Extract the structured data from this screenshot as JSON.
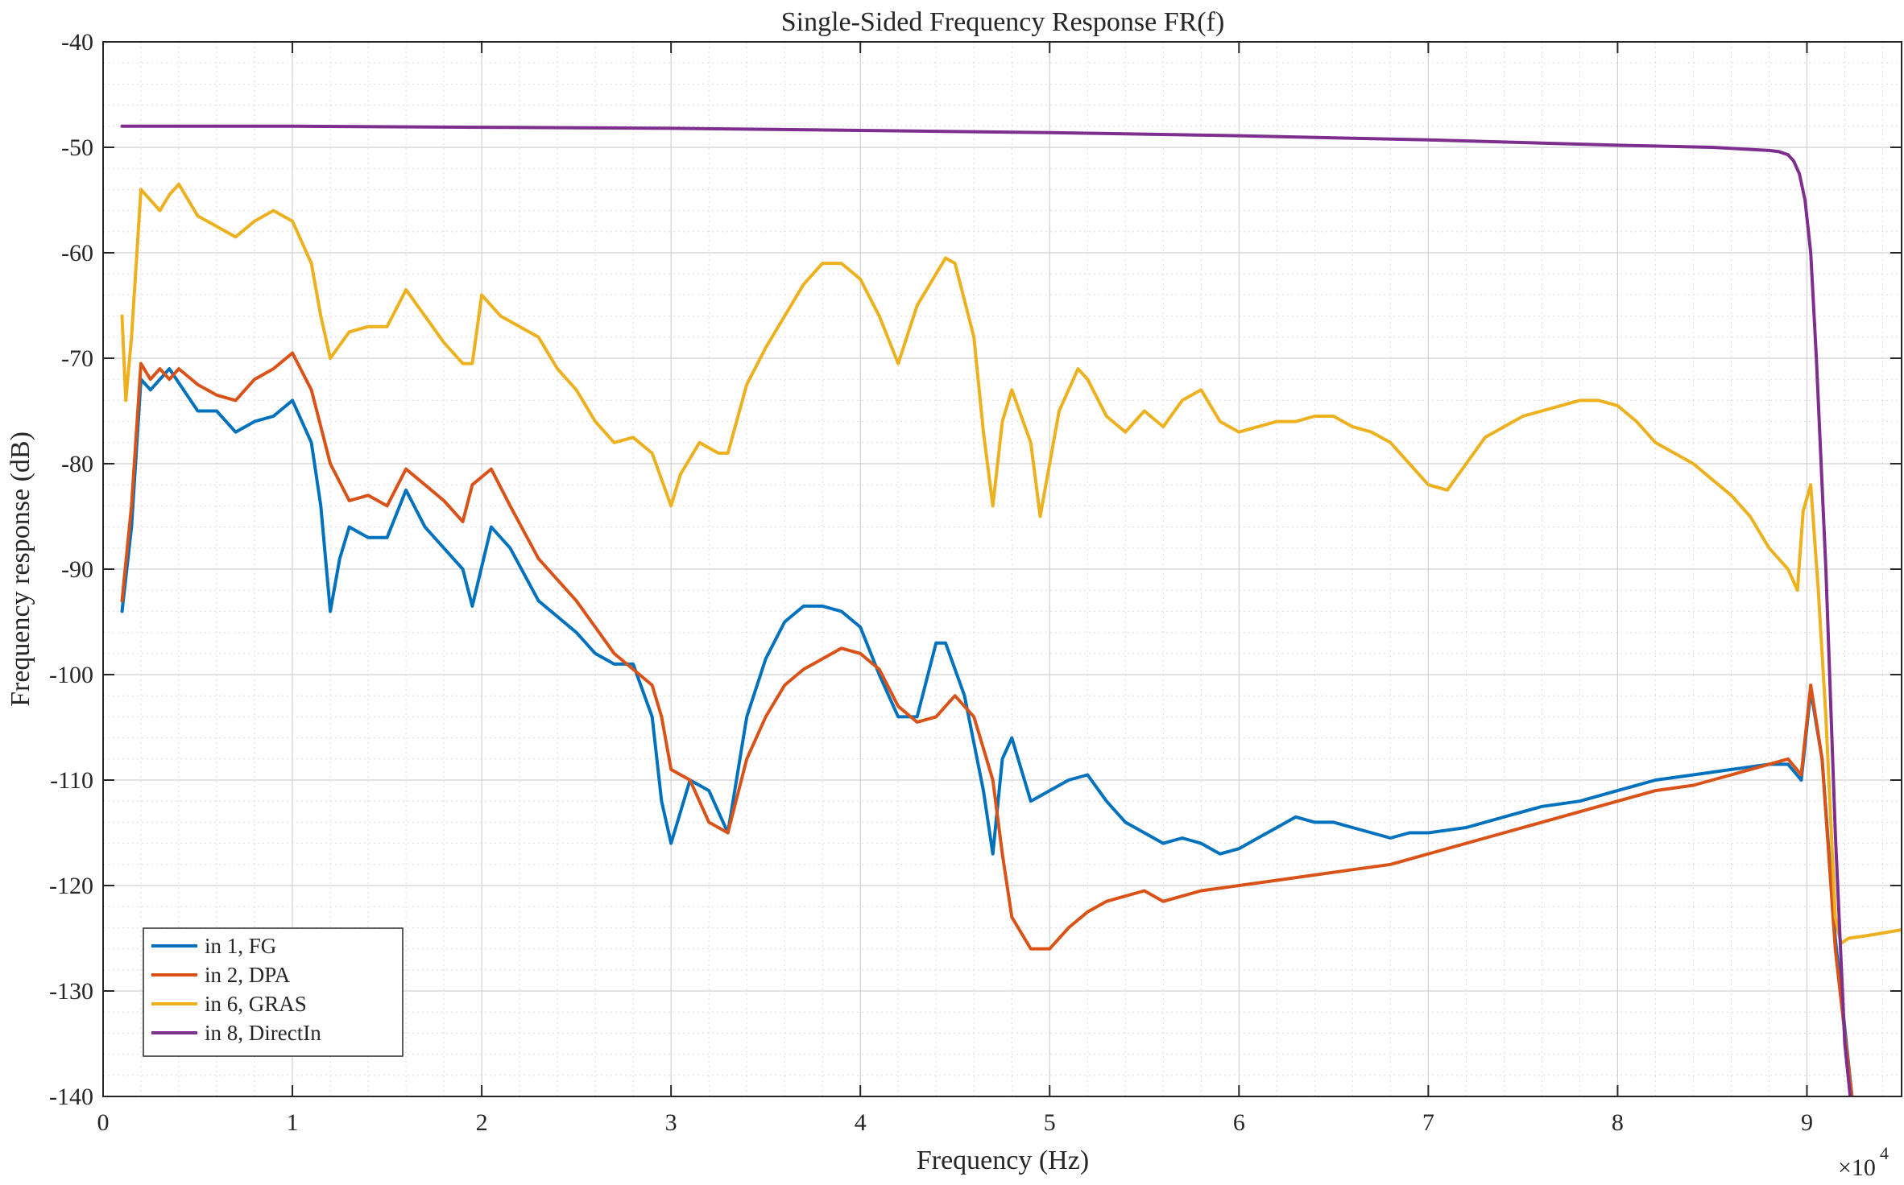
{
  "chart_data": {
    "type": "line",
    "title": "Single-Sided Frequency Response FR(f)",
    "xlabel": "Frequency (Hz)",
    "ylabel": "Frequency response (dB)",
    "x_exponent_label": "×10",
    "x_exponent_power": "4",
    "xlim": [
      0,
      95000
    ],
    "ylim": [
      -140,
      -40
    ],
    "xticks": [
      0,
      10000,
      20000,
      30000,
      40000,
      50000,
      60000,
      70000,
      80000,
      90000
    ],
    "xtick_labels": [
      "0",
      "1",
      "2",
      "3",
      "4",
      "5",
      "6",
      "7",
      "8",
      "9"
    ],
    "yticks": [
      -40,
      -50,
      -60,
      -70,
      -80,
      -90,
      -100,
      -110,
      -120,
      -130,
      -140
    ],
    "ytick_labels": [
      "-40",
      "-50",
      "-60",
      "-70",
      "-80",
      "-90",
      "-100",
      "-110",
      "-120",
      "-130",
      "-140"
    ],
    "grid": true,
    "minor_grid": true,
    "legend_position": "bottom-left",
    "series": [
      {
        "name": "in 1, FG",
        "color": "#0072bd",
        "x": [
          1000,
          1500,
          2000,
          2500,
          3500,
          5000,
          6000,
          7000,
          8000,
          9000,
          10000,
          11000,
          11500,
          12000,
          12500,
          13000,
          14000,
          15000,
          16000,
          17000,
          18000,
          19000,
          19500,
          20500,
          21500,
          23000,
          25000,
          26000,
          27000,
          28000,
          29000,
          29500,
          30000,
          31000,
          32000,
          33000,
          34000,
          35000,
          36000,
          37000,
          38000,
          39000,
          40000,
          41000,
          42000,
          43000,
          44000,
          44500,
          45500,
          46500,
          47000,
          47500,
          48000,
          49000,
          50000,
          51000,
          52000,
          53000,
          54000,
          55000,
          56000,
          57000,
          58000,
          59000,
          60000,
          61000,
          62000,
          63000,
          64000,
          65000,
          66000,
          67000,
          68000,
          69000,
          70000,
          72000,
          74000,
          76000,
          78000,
          80000,
          82000,
          84000,
          86000,
          88000,
          89000,
          89700,
          90200,
          90800,
          91500,
          92500
        ],
        "y": [
          -94,
          -86,
          -72,
          -73,
          -71,
          -75,
          -75,
          -77,
          -76,
          -75.5,
          -74,
          -78,
          -84,
          -94,
          -89,
          -86,
          -87,
          -87,
          -82.5,
          -86,
          -88,
          -90,
          -93.5,
          -86,
          -88,
          -93,
          -96,
          -98,
          -99,
          -99,
          -104,
          -112,
          -116,
          -110,
          -111,
          -115,
          -104,
          -98.5,
          -95,
          -93.5,
          -93.5,
          -94,
          -95.5,
          -100,
          -104,
          -104,
          -97,
          -97,
          -102,
          -111,
          -117,
          -108,
          -106,
          -112,
          -111,
          -110,
          -109.5,
          -112,
          -114,
          -115,
          -116,
          -115.5,
          -116,
          -117,
          -116.5,
          -115.5,
          -114.5,
          -113.5,
          -114,
          -114,
          -114.5,
          -115,
          -115.5,
          -115,
          -115,
          -114.5,
          -113.5,
          -112.5,
          -112,
          -111,
          -110,
          -109.5,
          -109,
          -108.5,
          -108.5,
          -110,
          -101.5,
          -108,
          -125,
          -142
        ]
      },
      {
        "name": "in 2, DPA",
        "color": "#d95319",
        "x": [
          1000,
          1500,
          2000,
          2500,
          3000,
          3500,
          4000,
          5000,
          6000,
          7000,
          8000,
          9000,
          10000,
          11000,
          12000,
          13000,
          14000,
          15000,
          16000,
          17000,
          18000,
          19000,
          19500,
          20500,
          21500,
          23000,
          25000,
          26000,
          27000,
          28000,
          29000,
          29500,
          30000,
          31000,
          32000,
          33000,
          34000,
          35000,
          36000,
          37000,
          38000,
          39000,
          40000,
          41000,
          42000,
          43000,
          44000,
          45000,
          46000,
          46500,
          47000,
          47500,
          48000,
          49000,
          50000,
          51000,
          52000,
          53000,
          54000,
          55000,
          56000,
          57000,
          58000,
          60000,
          62000,
          64000,
          66000,
          68000,
          70000,
          72000,
          74000,
          76000,
          78000,
          80000,
          82000,
          84000,
          86000,
          88000,
          89000,
          89700,
          90200,
          90800,
          91500,
          92500
        ],
        "y": [
          -93,
          -84,
          -70.5,
          -72,
          -71,
          -72,
          -71,
          -72.5,
          -73.5,
          -74,
          -72,
          -71,
          -69.5,
          -73,
          -80,
          -83.5,
          -83,
          -84,
          -80.5,
          -82,
          -83.5,
          -85.5,
          -82,
          -80.5,
          -84,
          -89,
          -93,
          -95.5,
          -98,
          -99.5,
          -101,
          -104,
          -109,
          -110,
          -114,
          -115,
          -108,
          -104,
          -101,
          -99.5,
          -98.5,
          -97.5,
          -98,
          -99.5,
          -103,
          -104.5,
          -104,
          -102,
          -104,
          -107,
          -110,
          -117,
          -123,
          -126,
          -126,
          -124,
          -122.5,
          -121.5,
          -121,
          -120.5,
          -121.5,
          -121,
          -120.5,
          -120,
          -119.5,
          -119,
          -118.5,
          -118,
          -117,
          -116,
          -115,
          -114,
          -113,
          -112,
          -111,
          -110.5,
          -109.5,
          -108.5,
          -108,
          -109.5,
          -101,
          -108,
          -126,
          -142
        ]
      },
      {
        "name": "in 6, GRAS",
        "color": "#edb120",
        "x": [
          1000,
          1200,
          1500,
          2000,
          2500,
          3000,
          3500,
          4000,
          5000,
          6000,
          7000,
          8000,
          9000,
          10000,
          11000,
          11500,
          12000,
          13000,
          14000,
          15000,
          16000,
          17000,
          18000,
          19000,
          19500,
          20000,
          21000,
          22000,
          23000,
          24000,
          25000,
          26000,
          27000,
          28000,
          29000,
          30000,
          30500,
          31500,
          32500,
          33000,
          34000,
          35000,
          36000,
          37000,
          38000,
          39000,
          40000,
          41000,
          42000,
          43000,
          44000,
          44500,
          45000,
          46000,
          46500,
          47000,
          47500,
          48000,
          49000,
          49500,
          50500,
          51500,
          52000,
          53000,
          54000,
          55000,
          56000,
          57000,
          58000,
          59000,
          60000,
          61000,
          62000,
          63000,
          64000,
          65000,
          66000,
          67000,
          68000,
          69000,
          70000,
          71000,
          72000,
          73000,
          74000,
          75000,
          76000,
          77000,
          78000,
          79000,
          80000,
          81000,
          82000,
          83000,
          84000,
          85000,
          86000,
          87000,
          88000,
          89000,
          89500,
          89800,
          90200,
          90600,
          91000,
          91500,
          91800,
          92200,
          93000,
          94000,
          95000
        ],
        "y": [
          -66,
          -74,
          -68,
          -54,
          -55,
          -56,
          -54.5,
          -53.5,
          -56.5,
          -57.5,
          -58.5,
          -57,
          -56,
          -57,
          -61,
          -66,
          -70,
          -67.5,
          -67,
          -67,
          -63.5,
          -66,
          -68.5,
          -70.5,
          -70.5,
          -64,
          -66,
          -67,
          -68,
          -71,
          -73,
          -76,
          -78,
          -77.5,
          -79,
          -84,
          -81,
          -78,
          -79,
          -79,
          -72.5,
          -69,
          -66,
          -63,
          -61,
          -61,
          -62.5,
          -66,
          -70.5,
          -65,
          -62,
          -60.5,
          -61,
          -68,
          -77,
          -84,
          -76,
          -73,
          -78,
          -85,
          -75,
          -71,
          -72,
          -75.5,
          -77,
          -75,
          -76.5,
          -74,
          -73,
          -76,
          -77,
          -76.5,
          -76,
          -76,
          -75.5,
          -75.5,
          -76.5,
          -77,
          -78,
          -80,
          -82,
          -82.5,
          -80,
          -77.5,
          -76.5,
          -75.5,
          -75,
          -74.5,
          -74,
          -74,
          -74.5,
          -76,
          -78,
          -79,
          -80,
          -81.5,
          -83,
          -85,
          -88,
          -90,
          -92,
          -84.5,
          -82,
          -92,
          -104,
          -123,
          -125.5,
          -125,
          -124.8,
          -124.5,
          -124.2
        ]
      },
      {
        "name": "in 8, DirectIn",
        "color": "#7e2f8e",
        "x": [
          1000,
          10000,
          20000,
          30000,
          40000,
          50000,
          60000,
          70000,
          80000,
          85000,
          88000,
          88500,
          89000,
          89300,
          89600,
          89900,
          90200,
          90500,
          91000,
          91500,
          92000,
          92400
        ],
        "y": [
          -48,
          -48,
          -48.1,
          -48.2,
          -48.4,
          -48.6,
          -48.9,
          -49.3,
          -49.8,
          -50,
          -50.3,
          -50.4,
          -50.7,
          -51.3,
          -52.5,
          -55,
          -60,
          -70,
          -90,
          -115,
          -135,
          -142
        ]
      }
    ]
  }
}
